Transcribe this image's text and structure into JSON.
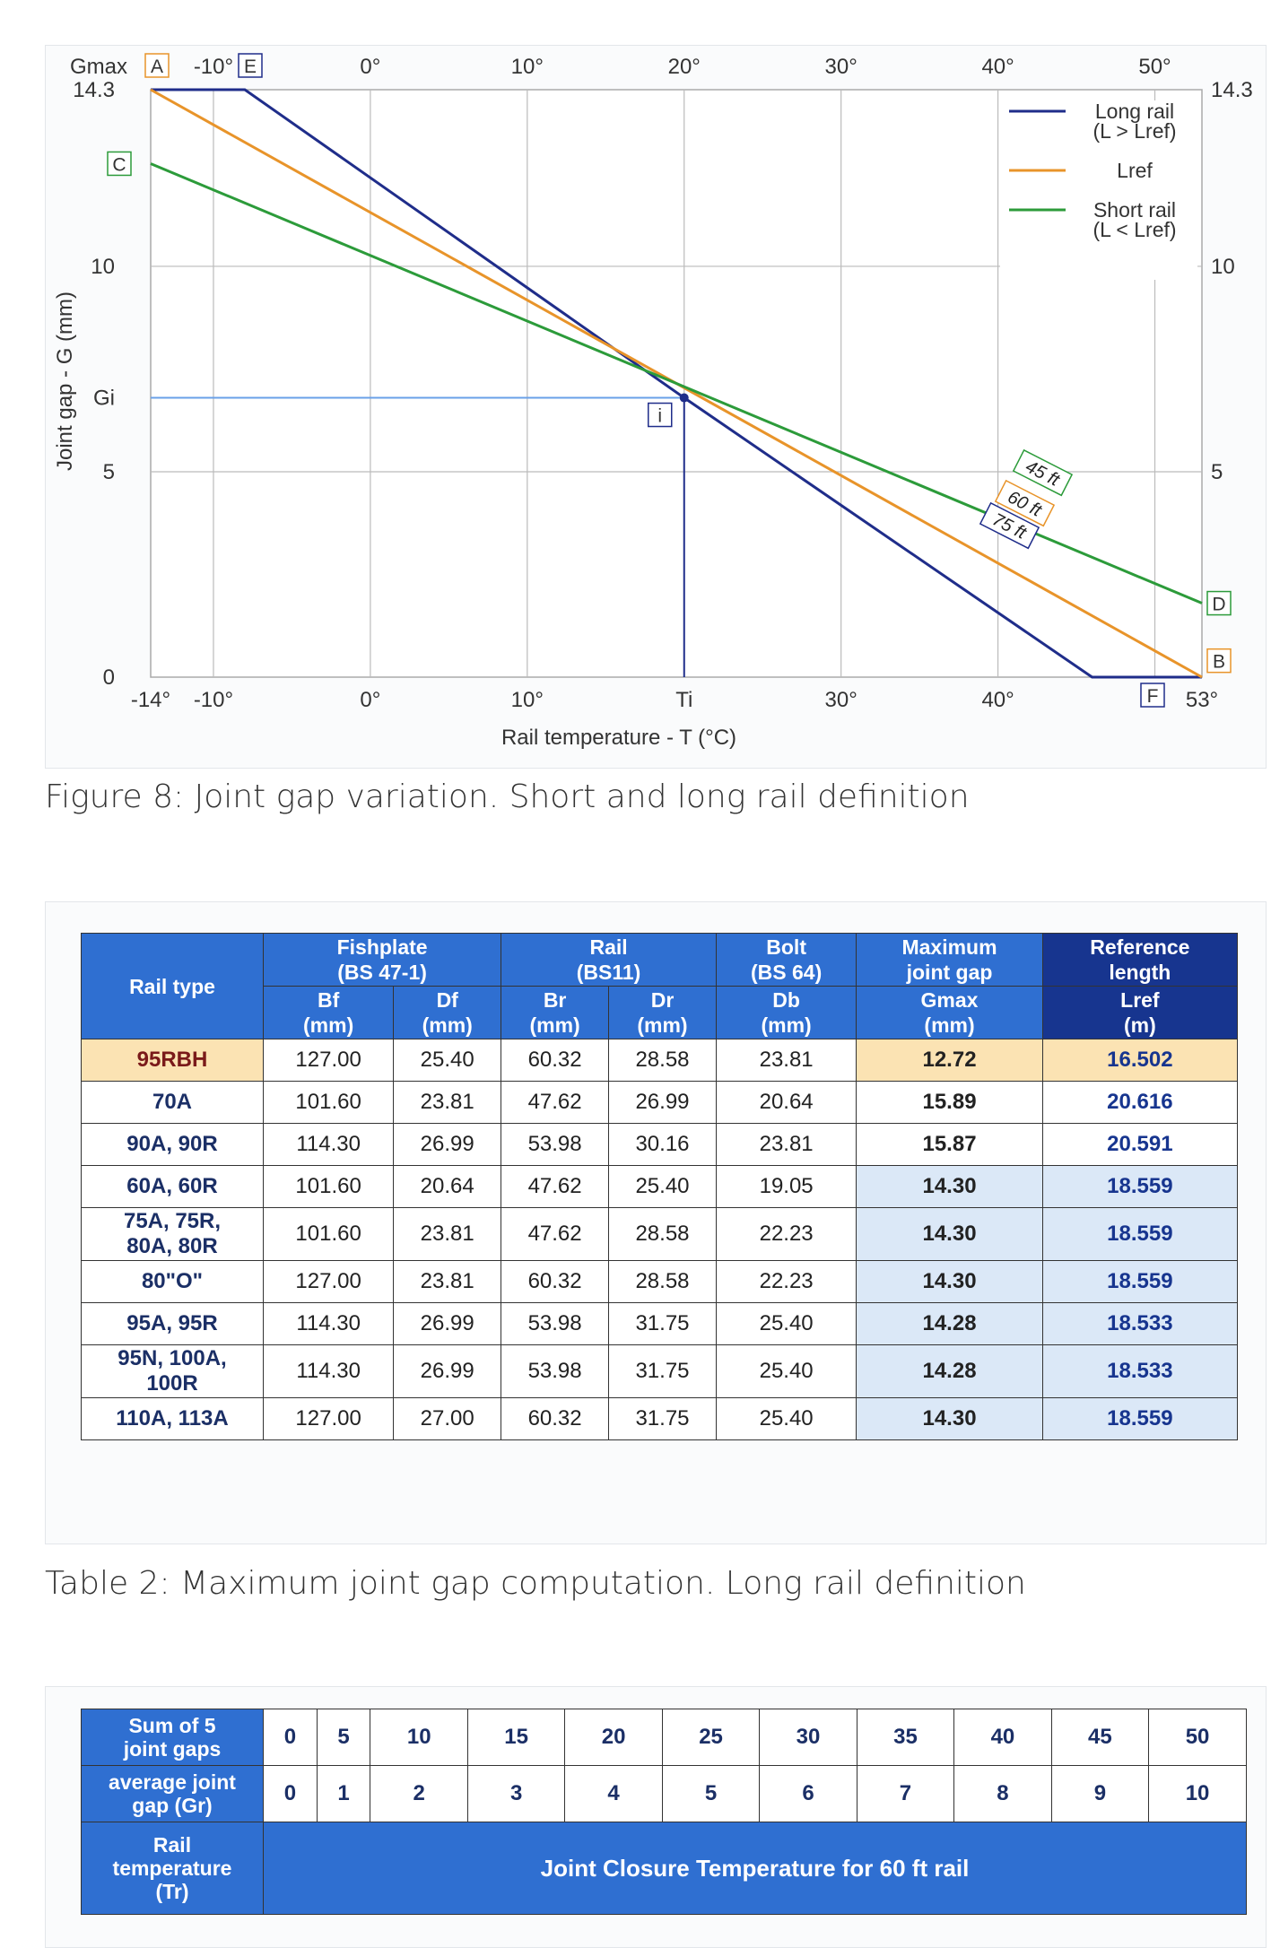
{
  "chart_data": {
    "type": "line",
    "title": "",
    "xlabel": "Rail temperature - T (°C)",
    "ylabel": "Joint gap - G (mm)",
    "xlim": [
      -14,
      53
    ],
    "ylim": [
      0,
      14.3
    ],
    "top_ticks": [
      {
        "x": -10,
        "label": "-10°"
      },
      {
        "x": 0,
        "label": "0°"
      },
      {
        "x": 10,
        "label": "10°"
      },
      {
        "x": 20,
        "label": "20°"
      },
      {
        "x": 30,
        "label": "30°"
      },
      {
        "x": 40,
        "label": "40°"
      },
      {
        "x": 50,
        "label": "50°"
      }
    ],
    "bottom_ticks": [
      {
        "x": -14,
        "label": "-14°"
      },
      {
        "x": -10,
        "label": "-10°"
      },
      {
        "x": 0,
        "label": "0°"
      },
      {
        "x": 10,
        "label": "10°"
      },
      {
        "x": 20,
        "label": "Ti"
      },
      {
        "x": 30,
        "label": "30°"
      },
      {
        "x": 40,
        "label": "40°"
      },
      {
        "x": 53,
        "label": "53°"
      }
    ],
    "left_ticks": [
      {
        "y": 14.3,
        "label": "14.3"
      },
      {
        "y": 10,
        "label": "10"
      },
      {
        "y": 6.8,
        "label": "Gi"
      },
      {
        "y": 5,
        "label": "5"
      },
      {
        "y": 0,
        "label": "0"
      }
    ],
    "right_ticks": [
      {
        "y": 14.3,
        "label": "14.3"
      },
      {
        "y": 10,
        "label": "10"
      },
      {
        "y": 5,
        "label": "5"
      }
    ],
    "gmax_label": "Gmax",
    "series": [
      {
        "name": "Long rail\n(L > Lref)",
        "legend": [
          "Long rail",
          "(L > Lref)"
        ],
        "color": "#1f2d8a",
        "points": [
          [
            -14,
            14.3
          ],
          [
            -8,
            14.3
          ],
          [
            20,
            6.8
          ],
          [
            46,
            0
          ],
          [
            53,
            0
          ]
        ],
        "tag": "75 ft"
      },
      {
        "name": "Lref",
        "legend": [
          "Lref"
        ],
        "color": "#e8942a",
        "points": [
          [
            -14,
            14.3
          ],
          [
            53,
            0
          ]
        ],
        "tag": "60 ft"
      },
      {
        "name": "Short rail\n(L < Lref)",
        "legend": [
          "Short rail",
          "(L < Lref)"
        ],
        "color": "#2c9b3a",
        "points": [
          [
            -14,
            12.5
          ],
          [
            53,
            1.8
          ]
        ],
        "tag": "45 ft"
      }
    ],
    "point_labels": {
      "A": "A",
      "B": "B",
      "C": "C",
      "D": "D",
      "E": "E",
      "F": "F",
      "i": "i"
    },
    "ti": 20,
    "gi": 6.8
  },
  "caption1": "Figure 8: Joint gap variation. Short and long rail definition",
  "table2": {
    "headers": {
      "rail_type": "Rail type",
      "fishplate": "Fishplate\n(BS 47-1)",
      "rail": "Rail\n(BS11)",
      "bolt": "Bolt\n(BS 64)",
      "max_gap": "Maximum\njoint gap",
      "ref_len": "Reference\nlength",
      "bf": "Bf\n(mm)",
      "df": "Df\n(mm)",
      "br": "Br\n(mm)",
      "dr": "Dr\n(mm)",
      "db": "Db\n(mm)",
      "gmax": "Gmax\n(mm)",
      "lref": "Lref\n(m)"
    },
    "rows": [
      {
        "type": "95RBH",
        "bf": "127.00",
        "df": "25.40",
        "br": "60.32",
        "dr": "28.58",
        "db": "23.81",
        "gmax": "12.72",
        "lref": "16.502"
      },
      {
        "type": "70A",
        "bf": "101.60",
        "df": "23.81",
        "br": "47.62",
        "dr": "26.99",
        "db": "20.64",
        "gmax": "15.89",
        "lref": "20.616"
      },
      {
        "type": "90A, 90R",
        "bf": "114.30",
        "df": "26.99",
        "br": "53.98",
        "dr": "30.16",
        "db": "23.81",
        "gmax": "15.87",
        "lref": "20.591"
      },
      {
        "type": "60A, 60R",
        "bf": "101.60",
        "df": "20.64",
        "br": "47.62",
        "dr": "25.40",
        "db": "19.05",
        "gmax": "14.30",
        "lref": "18.559"
      },
      {
        "type": "75A, 75R,\n80A, 80R",
        "bf": "101.60",
        "df": "23.81",
        "br": "47.62",
        "dr": "28.58",
        "db": "22.23",
        "gmax": "14.30",
        "lref": "18.559"
      },
      {
        "type": "80\"O\"",
        "bf": "127.00",
        "df": "23.81",
        "br": "60.32",
        "dr": "28.58",
        "db": "22.23",
        "gmax": "14.30",
        "lref": "18.559"
      },
      {
        "type": "95A, 95R",
        "bf": "114.30",
        "df": "26.99",
        "br": "53.98",
        "dr": "31.75",
        "db": "25.40",
        "gmax": "14.28",
        "lref": "18.533"
      },
      {
        "type": "95N, 100A,\n100R",
        "bf": "114.30",
        "df": "26.99",
        "br": "53.98",
        "dr": "31.75",
        "db": "25.40",
        "gmax": "14.28",
        "lref": "18.533"
      },
      {
        "type": "110A, 113A",
        "bf": "127.00",
        "df": "27.00",
        "br": "60.32",
        "dr": "31.75",
        "db": "25.40",
        "gmax": "14.30",
        "lref": "18.559"
      }
    ]
  },
  "caption2": "Table 2: Maximum joint gap computation. Long rail definition",
  "table3": {
    "sum_label": "Sum of 5\njoint gaps",
    "sum_values": [
      "0",
      "5",
      "10",
      "15",
      "20",
      "25",
      "30",
      "35",
      "40",
      "45",
      "50"
    ],
    "avg_label": "average joint\ngap (Gr)",
    "avg_values": [
      "0",
      "1",
      "2",
      "3",
      "4",
      "5",
      "6",
      "7",
      "8",
      "9",
      "10"
    ],
    "temp_label": "Rail\ntemperature\n(Tr)",
    "closure_title": "Joint Closure Temperature for 60 ft rail"
  }
}
